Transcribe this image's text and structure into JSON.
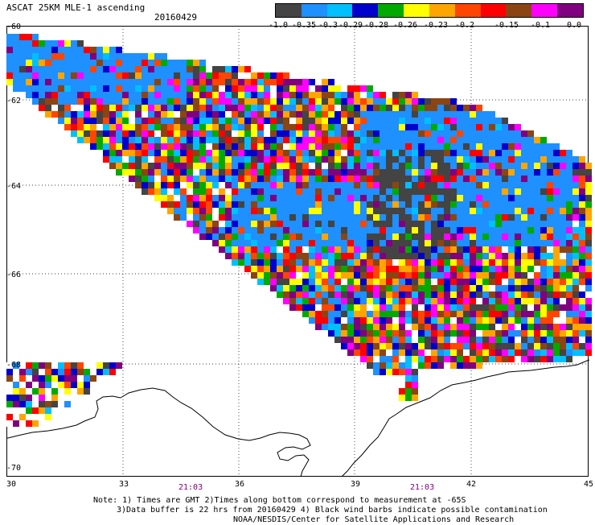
{
  "title": "ASCAT 25KM MLE-1 ascending",
  "date": "20160429",
  "colorbar": {
    "colors": [
      "#444444",
      "#1e90ff",
      "#00bfff",
      "#0000cd",
      "#00aa00",
      "#ffff00",
      "#ffa500",
      "#ff4500",
      "#ff0000",
      "#8b4513",
      "#ff00ff",
      "#800080"
    ],
    "labels": [
      "-1.0",
      "-0.35",
      "-0.3",
      "-0.29",
      "-0.28",
      "-0.26",
      "-0.23",
      "-0.2",
      "-0.15",
      "-0.1",
      "0.0"
    ]
  },
  "map": {
    "lat_labels": [
      "-60",
      "-62",
      "-64",
      "-66",
      "-68",
      "-70"
    ],
    "lon_labels": [
      "30",
      "33",
      "36",
      "39",
      "42",
      "45"
    ],
    "time_labels": [
      "21:03",
      "21:03"
    ]
  },
  "notes": [
    "Note: 1) Times are GMT 2)Times along bottom correspond to measurement at -65S",
    "3)Data buffer is 22 hrs from 20160429 4) Black wind barbs indicate possible contamination",
    "NOAA/NESDIS/Center for Satellite Applications and Research"
  ]
}
